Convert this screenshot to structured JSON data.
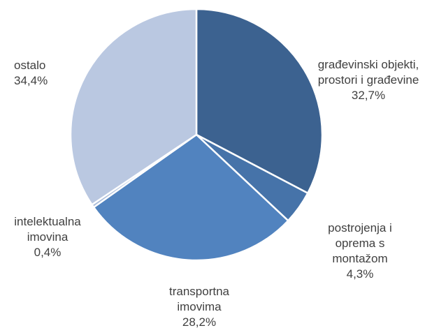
{
  "chart_data": {
    "type": "pie",
    "categories": [
      "građevinski objekti, prostori i građevine",
      "postrojenja i oprema s montažom",
      "transportna imovima",
      "intelektualna imovina",
      "ostalo"
    ],
    "values": [
      32.7,
      4.3,
      28.2,
      0.4,
      34.4
    ],
    "value_labels": [
      "32,7%",
      "4,3%",
      "28,2%",
      "0,4%",
      "34,4%"
    ],
    "colors": [
      "#3c6290",
      "#4673a9",
      "#5183bf",
      "#a9bbd9",
      "#bac8e1"
    ]
  }
}
